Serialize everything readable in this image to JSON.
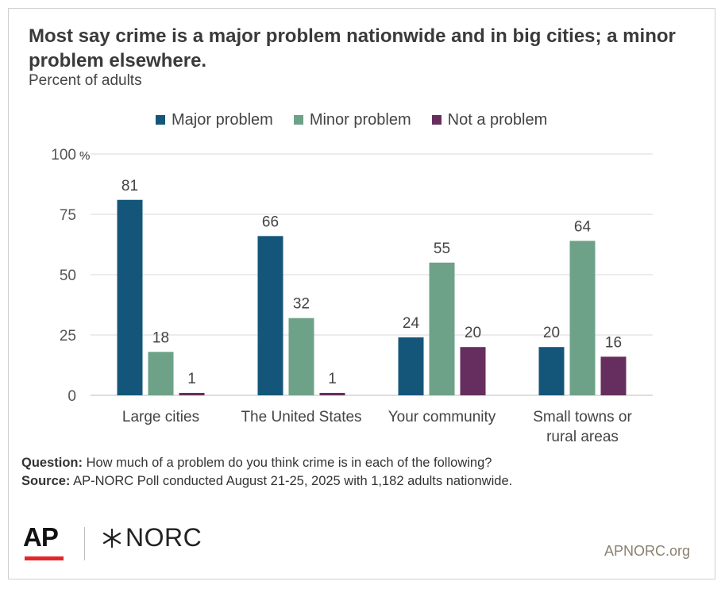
{
  "title": "Most say crime is a major problem nationwide and in big cities; a minor problem elsewhere.",
  "subtitle": "Percent of adults",
  "colors": {
    "major": "#14567a",
    "minor": "#6ea288",
    "none": "#662e5e"
  },
  "chart_data": {
    "type": "bar",
    "title": "Most say crime is a major problem nationwide and in big cities; a minor problem elsewhere.",
    "subtitle": "Percent of adults",
    "categories": [
      "Large cities",
      "The United States",
      "Your community",
      "Small towns or rural areas"
    ],
    "series": [
      {
        "name": "Major problem",
        "values": [
          81,
          66,
          24,
          20
        ]
      },
      {
        "name": "Minor problem",
        "values": [
          18,
          32,
          55,
          64
        ]
      },
      {
        "name": "Not a problem",
        "values": [
          1,
          1,
          20,
          16
        ]
      }
    ],
    "ylim": [
      0,
      100
    ],
    "yticks": [
      "0",
      "25",
      "50",
      "75",
      "100"
    ],
    "y_unit": "%",
    "grid": true,
    "legend": "top"
  },
  "footnotes": {
    "question_label": "Question:",
    "question_text": " How much of a problem do you think crime is in each of the following?",
    "source_label": "Source:",
    "source_text": " AP-NORC Poll conducted August 21-25, 2025 with 1,182 adults nationwide."
  },
  "branding": {
    "ap_logo_text": "AP",
    "norc_logo_text": "NORC",
    "site": "APNORC.org"
  }
}
